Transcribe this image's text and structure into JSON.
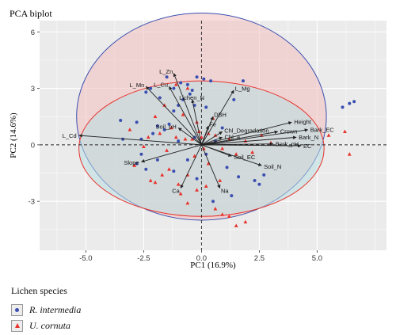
{
  "chart_data": {
    "type": "scatter",
    "subtype": "pca-biplot",
    "title": "PCA biplot",
    "xlabel": "PC1 (16.9%)",
    "ylabel": "PC2 (14.6%)",
    "xlim": [
      -7,
      8
    ],
    "ylim": [
      -5.6,
      6.6
    ],
    "xticks": [
      -5,
      -2.5,
      0,
      2.5,
      5
    ],
    "yticks": [
      -3,
      0,
      3,
      6
    ],
    "xtick_labels": [
      "-5.0",
      "-2.5",
      "0.0",
      "2.5",
      "5.0"
    ],
    "ytick_labels": [
      "-3",
      "0",
      "3",
      "6"
    ],
    "grid": true,
    "zero_lines": "dashed",
    "legend": {
      "title": "Lichen species",
      "position": "bottom-left",
      "entries": [
        "R. intermedia",
        "U. cornuta"
      ]
    },
    "colors": {
      "R. intermedia": "#3a4fb0",
      "U. cornuta": "#e8312a",
      "panel": "#ebebeb",
      "arrow": "#222222"
    },
    "ellipses": [
      {
        "series": "R. intermedia",
        "center": [
          0,
          1.5
        ],
        "rx": 5.4,
        "ry": 5.5,
        "fill": "#f3bfbf"
      },
      {
        "series": "U. cornuta",
        "center": [
          0,
          -0.2
        ],
        "rx": 5.3,
        "ry": 3.6,
        "fill": "#b9dfe2"
      }
    ],
    "loadings": [
      {
        "name": "L_Zn",
        "x": -1.2,
        "y": 3.8
      },
      {
        "name": "L_Mn",
        "x": -2.4,
        "y": 3.1
      },
      {
        "name": "L_Cu",
        "x": -1.4,
        "y": 3.1
      },
      {
        "name": "Lichen_N",
        "x": -0.4,
        "y": 2.4
      },
      {
        "name": "L_Mg",
        "x": 1.4,
        "y": 2.9
      },
      {
        "name": "DBH",
        "x": 0.5,
        "y": 1.5
      },
      {
        "name": "Fe",
        "x": 0.3,
        "y": 1.0
      },
      {
        "name": "Soil_pH",
        "x": -1.0,
        "y": 0.9
      },
      {
        "name": "Chl_Degradation",
        "x": 0.9,
        "y": 0.7
      },
      {
        "name": "Crown",
        "x": 3.3,
        "y": 0.7
      },
      {
        "name": "Height",
        "x": 3.9,
        "y": 1.2
      },
      {
        "name": "Bark_EC",
        "x": 4.6,
        "y": 0.8
      },
      {
        "name": "Chl_a",
        "x": 0.9,
        "y": 0.4
      },
      {
        "name": "Bark_N",
        "x": 4.1,
        "y": 0.4
      },
      {
        "name": "Bark_pH",
        "x": 3.1,
        "y": 0.05
      },
      {
        "name": "EC",
        "x": 4.3,
        "y": -0.05
      },
      {
        "name": "L_Cd",
        "x": -5.3,
        "y": 0.5
      },
      {
        "name": "Slope",
        "x": -2.6,
        "y": -0.9
      },
      {
        "name": "Soil_EC",
        "x": 1.3,
        "y": -0.6
      },
      {
        "name": "Soil_N",
        "x": 2.6,
        "y": -1.1
      },
      {
        "name": "Na",
        "x": 0.8,
        "y": -2.3
      },
      {
        "name": "Ca",
        "x": -0.9,
        "y": -2.3
      }
    ],
    "series": [
      {
        "name": "R. intermedia",
        "marker": "circle",
        "points": [
          [
            -3.5,
            1.3
          ],
          [
            -2.8,
            1.2
          ],
          [
            -3.4,
            0.3
          ],
          [
            -2.6,
            0.3
          ],
          [
            -2.1,
            0.6
          ],
          [
            -1.9,
            1.0
          ],
          [
            -1.6,
            0.8
          ],
          [
            -2.2,
            3.0
          ],
          [
            -1.5,
            3.6
          ],
          [
            -1.2,
            3.0
          ],
          [
            -0.9,
            3.3
          ],
          [
            -0.6,
            3.2
          ],
          [
            -0.4,
            2.9
          ],
          [
            -0.2,
            3.6
          ],
          [
            0.1,
            3.5
          ],
          [
            0.4,
            3.4
          ],
          [
            -0.8,
            2.4
          ],
          [
            -0.3,
            2.1
          ],
          [
            0.2,
            2.0
          ],
          [
            -1.2,
            1.8
          ],
          [
            -1.8,
            2.5
          ],
          [
            1.4,
            2.4
          ],
          [
            1.8,
            3.4
          ],
          [
            -2.8,
            -1.0
          ],
          [
            -2.6,
            -0.5
          ],
          [
            -2.4,
            -1.3
          ],
          [
            -1.2,
            -1.4
          ],
          [
            -0.6,
            -0.8
          ],
          [
            -0.2,
            -1.8
          ],
          [
            0.5,
            -3.0
          ],
          [
            1.3,
            -2.7
          ],
          [
            1.6,
            -1.7
          ],
          [
            2.3,
            -1.9
          ],
          [
            2.5,
            -2.1
          ],
          [
            1.1,
            -1.2
          ],
          [
            -1.9,
            -0.8
          ],
          [
            6.1,
            2.0
          ],
          [
            6.4,
            2.2
          ],
          [
            6.6,
            2.3
          ],
          [
            -1.4,
            1.1
          ],
          [
            -1.0,
            0.2
          ],
          [
            -0.3,
            0.4
          ],
          [
            0.6,
            0.2
          ],
          [
            0.9,
            0.9
          ],
          [
            -0.5,
            2.7
          ],
          [
            2.7,
            -1.6
          ],
          [
            0.2,
            -0.5
          ],
          [
            -2.4,
            2.8
          ],
          [
            -1.0,
            2.1
          ]
        ]
      },
      {
        "name": "U. cornuta",
        "marker": "triangle",
        "points": [
          [
            -3.1,
            0.8
          ],
          [
            -2.5,
            -0.1
          ],
          [
            -2.3,
            0.4
          ],
          [
            -1.8,
            0.6
          ],
          [
            -1.5,
            -0.3
          ],
          [
            -1.1,
            0.4
          ],
          [
            -0.7,
            0.3
          ],
          [
            -0.4,
            0.3
          ],
          [
            -0.1,
            0.7
          ],
          [
            0.1,
            -0.2
          ],
          [
            0.3,
            0.6
          ],
          [
            0.6,
            0.5
          ],
          [
            0.9,
            -0.2
          ],
          [
            1.2,
            0.3
          ],
          [
            1.5,
            -0.5
          ],
          [
            1.9,
            0.2
          ],
          [
            2.2,
            -0.4
          ],
          [
            2.6,
            0.5
          ],
          [
            3.0,
            0.1
          ],
          [
            -2.9,
            -1.1
          ],
          [
            -2.2,
            -1.9
          ],
          [
            -2.0,
            -2.0
          ],
          [
            -1.4,
            -1.3
          ],
          [
            -1.0,
            -2.1
          ],
          [
            -0.6,
            -1.6
          ],
          [
            -0.2,
            -2.4
          ],
          [
            0.2,
            -2.2
          ],
          [
            0.6,
            -3.4
          ],
          [
            0.9,
            -3.7
          ],
          [
            1.2,
            -3.8
          ],
          [
            1.5,
            -4.3
          ],
          [
            1.9,
            -4.1
          ],
          [
            -0.6,
            -3.1
          ],
          [
            -0.9,
            -2.6
          ],
          [
            0.3,
            -1.0
          ],
          [
            -1.7,
            -1.6
          ],
          [
            -1.3,
            0.9
          ],
          [
            -2.0,
            1.5
          ],
          [
            -1.6,
            2.1
          ],
          [
            -0.8,
            1.6
          ],
          [
            -0.2,
            1.2
          ],
          [
            0.5,
            1.4
          ],
          [
            -0.6,
            3.0
          ],
          [
            -1.1,
            3.2
          ],
          [
            6.2,
            0.7
          ],
          [
            5.5,
            0.5
          ],
          [
            6.4,
            -0.5
          ],
          [
            -0.3,
            -0.6
          ],
          [
            0.8,
            -1.9
          ],
          [
            0.0,
            0.4
          ]
        ]
      }
    ]
  }
}
